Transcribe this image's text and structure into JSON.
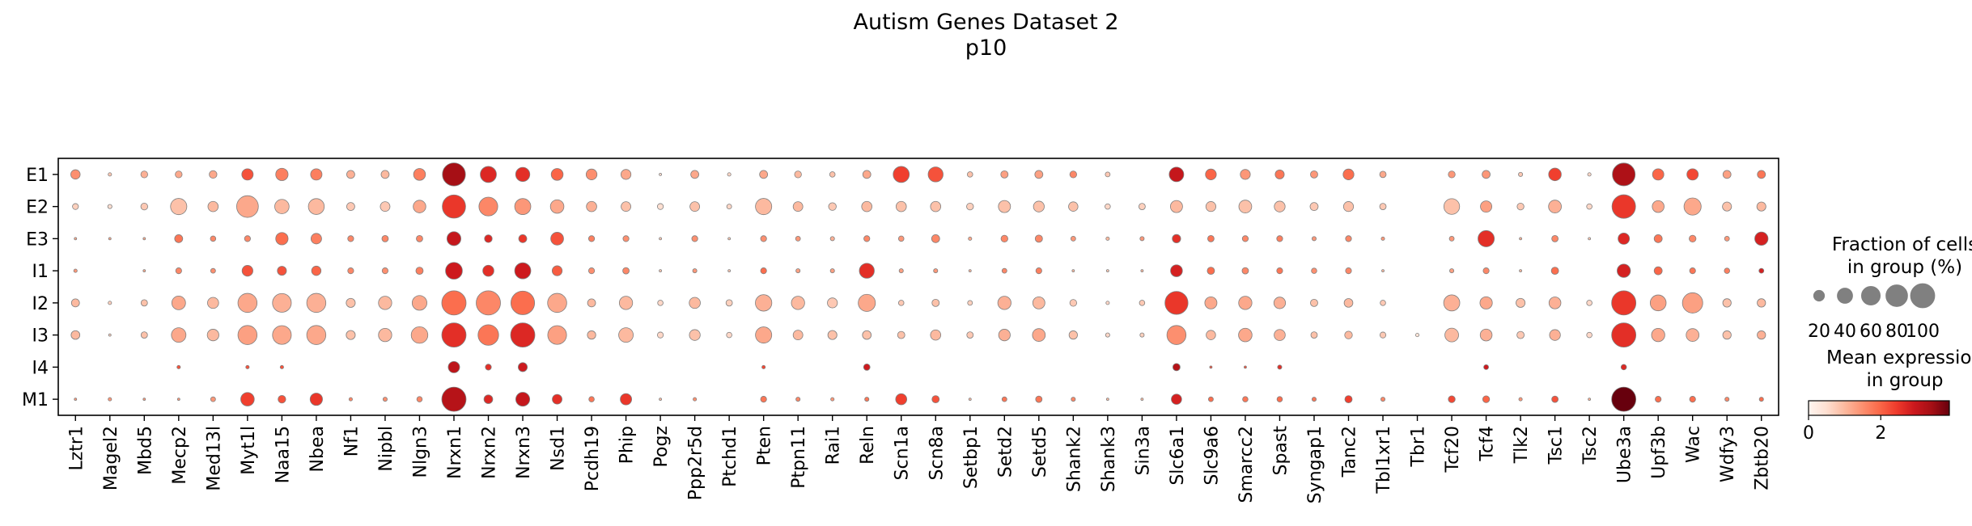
{
  "chart_data": {
    "type": "dotplot",
    "title": "Autism Genes Dataset 2",
    "subtitle": "p10",
    "rows": [
      "E1",
      "E2",
      "E3",
      "I1",
      "I2",
      "I3",
      "I4",
      "M1"
    ],
    "genes": [
      "Lztr1",
      "Magel2",
      "Mbd5",
      "Mecp2",
      "Med13l",
      "Myt1l",
      "Naa15",
      "Nbea",
      "Nf1",
      "Nipbl",
      "Nlgn3",
      "Nrxn1",
      "Nrxn2",
      "Nrxn3",
      "Nsd1",
      "Pcdh19",
      "Phip",
      "Pogz",
      "Ppp2r5d",
      "Ptchd1",
      "Pten",
      "Ptpn11",
      "Rai1",
      "Reln",
      "Scn1a",
      "Scn8a",
      "Setbp1",
      "Setd2",
      "Setd5",
      "Shank2",
      "Shank3",
      "Sin3a",
      "Slc6a1",
      "Slc9a6",
      "Smarcc2",
      "Spast",
      "Syngap1",
      "Tanc2",
      "Tbl1xr1",
      "Tbr1",
      "Tcf20",
      "Tcf4",
      "Tlk2",
      "Tsc1",
      "Tsc2",
      "Ube3a",
      "Upf3b",
      "Wac",
      "Wdfy3",
      "Zbtb20"
    ],
    "fraction_pct": [
      [
        15,
        2,
        8,
        8,
        10,
        22,
        26,
        22,
        11,
        11,
        24,
        90,
        44,
        34,
        24,
        20,
        17,
        1,
        11,
        2,
        11,
        8,
        5,
        11,
        44,
        38,
        5,
        9,
        11,
        8,
        4,
        0,
        36,
        20,
        17,
        14,
        9,
        20,
        7,
        0,
        8,
        11,
        3,
        27,
        2,
        88,
        22,
        22,
        11,
        11
      ],
      [
        6,
        3,
        8,
        45,
        18,
        80,
        35,
        43,
        11,
        16,
        27,
        92,
        60,
        44,
        31,
        18,
        16,
        6,
        16,
        4,
        45,
        16,
        10,
        18,
        18,
        18,
        8,
        25,
        20,
        15,
        5,
        7,
        25,
        17,
        28,
        20,
        11,
        17,
        7,
        0,
        42,
        22,
        8,
        28,
        5,
        94,
        24,
        50,
        14,
        14
      ],
      [
        1,
        1,
        1,
        11,
        5,
        6,
        26,
        19,
        6,
        7,
        7,
        33,
        10,
        11,
        28,
        6,
        6,
        1,
        6,
        1,
        6,
        4,
        3,
        6,
        5,
        11,
        2,
        8,
        9,
        4,
        2,
        3,
        12,
        7,
        6,
        6,
        3,
        6,
        2,
        0,
        4,
        45,
        1,
        7,
        1,
        22,
        11,
        8,
        4,
        30
      ],
      [
        2,
        0,
        1,
        6,
        4,
        20,
        14,
        15,
        6,
        6,
        9,
        48,
        21,
        44,
        17,
        6,
        7,
        1,
        3,
        1,
        6,
        3,
        3,
        38,
        3,
        3,
        1,
        4,
        6,
        1,
        1,
        1,
        24,
        9,
        7,
        6,
        5,
        6,
        1,
        0,
        3,
        6,
        1,
        9,
        0,
        30,
        11,
        6,
        5,
        4
      ],
      [
        11,
        2,
        7,
        32,
        21,
        62,
        60,
        62,
        14,
        30,
        37,
        100,
        100,
        95,
        62,
        11,
        30,
        5,
        21,
        7,
        46,
        30,
        17,
        50,
        5,
        9,
        4,
        30,
        25,
        8,
        2,
        5,
        90,
        25,
        30,
        23,
        9,
        13,
        5,
        0,
        44,
        26,
        14,
        24,
        5,
        100,
        43,
        70,
        12,
        12
      ],
      [
        13,
        1,
        7,
        36,
        23,
        62,
        60,
        62,
        14,
        30,
        47,
        100,
        72,
        100,
        60,
        12,
        36,
        6,
        20,
        5,
        45,
        16,
        14,
        13,
        9,
        18,
        7,
        23,
        28,
        12,
        3,
        3,
        62,
        15,
        31,
        21,
        7,
        10,
        6,
        2,
        32,
        24,
        9,
        20,
        5,
        100,
        30,
        28,
        12,
        12
      ],
      [
        0,
        0,
        0,
        2,
        0,
        2,
        2,
        0,
        0,
        0,
        0,
        22,
        6,
        14,
        0,
        0,
        0,
        0,
        0,
        0,
        2,
        0,
        0,
        7,
        0,
        0,
        0,
        0,
        0,
        0,
        0,
        0,
        9,
        1,
        1,
        3,
        0,
        0,
        0,
        0,
        0,
        4,
        0,
        0,
        0,
        5,
        0,
        0,
        0,
        0
      ],
      [
        1,
        2,
        1,
        1,
        4,
        31,
        10,
        26,
        2,
        3,
        5,
        100,
        13,
        33,
        16,
        5,
        22,
        1,
        2,
        0,
        6,
        3,
        2,
        3,
        21,
        9,
        1,
        4,
        7,
        3,
        1,
        1,
        18,
        4,
        5,
        5,
        3,
        9,
        3,
        0,
        8,
        8,
        2,
        7,
        1,
        100,
        6,
        6,
        3,
        3
      ]
    ],
    "mean_expression": [
      [
        1.5,
        0.8,
        1.1,
        1.2,
        1.2,
        2.2,
        1.7,
        1.7,
        1.1,
        1.0,
        1.7,
        3.4,
        2.7,
        2.6,
        2.0,
        1.5,
        1.2,
        0.5,
        1.2,
        0.6,
        1.2,
        1.0,
        0.9,
        1.2,
        2.4,
        2.2,
        0.9,
        1.3,
        1.3,
        1.6,
        0.8,
        0.5,
        3.0,
        2.0,
        1.4,
        1.8,
        1.4,
        1.9,
        1.2,
        0.3,
        1.4,
        1.4,
        0.8,
        2.4,
        0.6,
        3.3,
        2.0,
        2.3,
        1.3,
        1.8
      ],
      [
        0.7,
        0.5,
        0.8,
        0.9,
        1.0,
        1.2,
        1.0,
        1.0,
        0.8,
        0.8,
        1.2,
        2.5,
        1.6,
        1.4,
        1.2,
        1.1,
        0.9,
        0.5,
        0.9,
        0.6,
        1.0,
        1.0,
        0.8,
        1.0,
        0.9,
        0.9,
        0.7,
        0.9,
        0.9,
        0.9,
        0.6,
        0.7,
        1.0,
        0.9,
        0.9,
        0.9,
        0.8,
        0.9,
        0.8,
        0.3,
        0.9,
        1.3,
        0.8,
        1.1,
        0.6,
        2.5,
        1.2,
        1.2,
        0.9,
        1.0
      ],
      [
        1.2,
        1.2,
        1.2,
        1.8,
        1.6,
        1.6,
        1.9,
        1.7,
        1.6,
        1.6,
        1.6,
        3.0,
        2.7,
        2.5,
        2.2,
        1.7,
        1.5,
        0.8,
        1.5,
        0.8,
        1.5,
        1.4,
        1.1,
        1.6,
        1.4,
        1.6,
        1.2,
        1.6,
        1.6,
        1.4,
        1.0,
        1.4,
        2.6,
        1.8,
        1.6,
        1.7,
        1.4,
        1.6,
        1.4,
        0.3,
        1.4,
        2.6,
        1.1,
        1.6,
        0.8,
        2.7,
        1.8,
        1.6,
        1.4,
        2.8
      ],
      [
        1.4,
        0.5,
        1.2,
        1.6,
        1.5,
        2.2,
        2.2,
        2.0,
        1.6,
        1.5,
        1.7,
        2.9,
        2.6,
        2.9,
        2.1,
        1.5,
        1.6,
        0.8,
        1.4,
        0.8,
        1.9,
        1.3,
        1.3,
        2.6,
        1.3,
        1.4,
        1.0,
        1.6,
        1.7,
        1.0,
        0.8,
        1.0,
        2.8,
        1.9,
        1.6,
        1.8,
        1.5,
        1.6,
        1.0,
        0.3,
        1.3,
        1.6,
        1.0,
        1.9,
        0.5,
        2.8,
        2.0,
        1.8,
        1.7,
        2.8
      ],
      [
        1.0,
        0.7,
        0.9,
        1.2,
        1.0,
        1.2,
        1.1,
        1.1,
        0.9,
        1.0,
        1.2,
        1.9,
        1.6,
        1.9,
        1.2,
        1.0,
        1.0,
        0.6,
        1.0,
        0.7,
        1.1,
        1.0,
        0.8,
        1.2,
        0.8,
        0.9,
        0.7,
        1.1,
        1.0,
        0.8,
        0.6,
        0.8,
        2.5,
        1.2,
        1.2,
        1.1,
        0.9,
        1.0,
        0.8,
        0.3,
        1.1,
        1.2,
        0.9,
        1.1,
        0.6,
        2.5,
        1.3,
        1.3,
        0.9,
        1.0
      ],
      [
        1.0,
        0.7,
        0.9,
        1.2,
        1.0,
        1.3,
        1.2,
        1.2,
        0.9,
        1.0,
        1.2,
        2.6,
        1.8,
        2.7,
        1.3,
        1.0,
        1.0,
        0.6,
        0.9,
        0.6,
        1.2,
        1.0,
        0.9,
        0.9,
        0.9,
        1.0,
        0.8,
        1.1,
        1.2,
        0.9,
        0.6,
        0.7,
        1.5,
        1.0,
        1.2,
        1.1,
        0.9,
        1.0,
        0.8,
        0.4,
        1.0,
        1.1,
        0.8,
        1.1,
        0.6,
        2.6,
        1.2,
        1.1,
        0.9,
        1.1
      ],
      [
        0.2,
        0.2,
        0.2,
        2.2,
        0.2,
        2.2,
        2.2,
        0.2,
        0.2,
        0.2,
        0.2,
        3.1,
        2.6,
        2.9,
        0.2,
        0.2,
        0.2,
        0.2,
        0.2,
        0.2,
        2.3,
        0.2,
        0.2,
        2.9,
        0.2,
        0.2,
        0.2,
        0.2,
        0.2,
        0.2,
        0.2,
        0.2,
        3.2,
        2.2,
        2.2,
        2.6,
        0.2,
        0.2,
        0.2,
        0.2,
        0.2,
        2.9,
        0.2,
        0.2,
        0.2,
        2.7,
        0.2,
        0.2,
        0.2,
        0.2
      ],
      [
        1.4,
        1.4,
        1.4,
        1.4,
        1.4,
        2.4,
        2.2,
        2.5,
        1.6,
        1.5,
        1.6,
        3.2,
        2.7,
        3.0,
        2.6,
        1.8,
        2.5,
        1.0,
        1.5,
        0.5,
        1.8,
        1.6,
        1.4,
        1.8,
        2.4,
        2.2,
        1.0,
        1.8,
        1.8,
        1.6,
        1.0,
        1.0,
        2.8,
        1.9,
        1.8,
        1.9,
        1.8,
        2.4,
        1.6,
        0.3,
        2.3,
        2.0,
        1.4,
        2.2,
        1.1,
        3.9,
        1.9,
        1.9,
        1.6,
        1.9
      ]
    ],
    "size_legend": {
      "title_line1": "Fraction of cells",
      "title_line2": "in group (%)",
      "ticks": [
        20,
        40,
        60,
        80,
        100
      ]
    },
    "color_legend": {
      "title_line1": "Mean expression",
      "title_line2": "in group",
      "ticks": [
        0,
        2
      ],
      "vmin": 0,
      "vmax": 3.9,
      "colormap": "Reds",
      "stops": [
        "#fff5f0",
        "#fee0d2",
        "#fcbba1",
        "#fc9272",
        "#fb6a4a",
        "#ef3b2c",
        "#cb181d",
        "#a50f15",
        "#67000d"
      ]
    },
    "dot_edge_color": "#7f7f7f"
  }
}
